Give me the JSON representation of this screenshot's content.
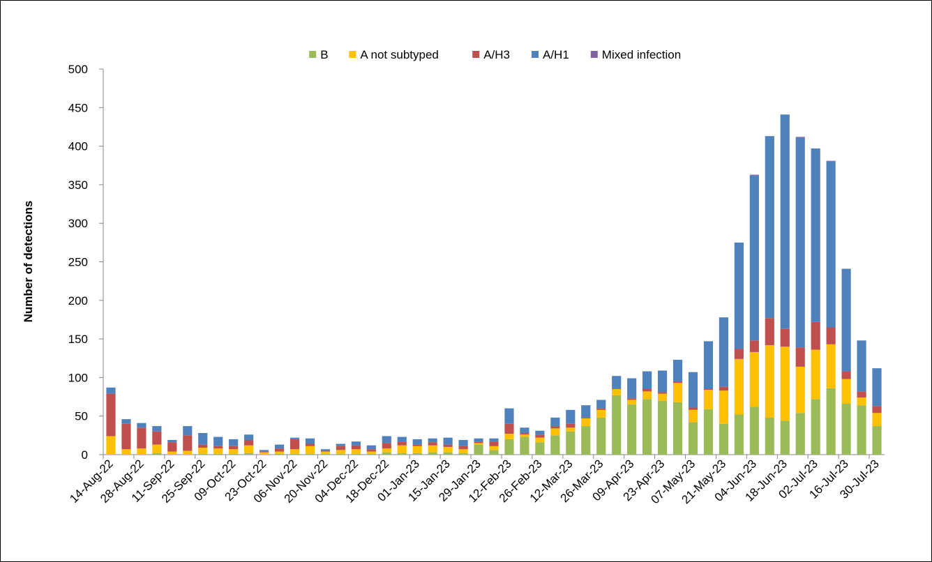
{
  "chart_data": {
    "type": "stacked_bar",
    "y_label": "Number of detections",
    "categories": [
      "14-Aug-22",
      null,
      "28-Aug-22",
      null,
      "11-Sep-22",
      null,
      "25-Sep-22",
      null,
      "09-Oct-22",
      null,
      "23-Oct-22",
      null,
      "06-Nov-22",
      null,
      "20-Nov-22",
      null,
      "04-Dec-22",
      null,
      "18-Dec-22",
      null,
      "01-Jan-23",
      null,
      "15-Jan-23",
      null,
      "29-Jan-23",
      null,
      "12-Feb-23",
      null,
      "26-Feb-23",
      null,
      "12-Mar-23",
      null,
      "26-Mar-23",
      null,
      "09-Apr-23",
      null,
      "23-Apr-23",
      null,
      "07-May-23",
      null,
      "21-May-23",
      null,
      "04-Jun-23",
      null,
      "18-Jun-23",
      null,
      "02-Jul-23",
      null,
      "16-Jul-23",
      null,
      "30-Jul-23"
    ],
    "series": [
      {
        "name": "B",
        "color": "#9bbb59",
        "values": [
          0,
          0,
          0,
          2,
          0,
          0,
          1,
          1,
          1,
          2,
          0,
          1,
          1,
          1,
          1,
          1,
          1,
          1,
          3,
          2,
          2,
          3,
          3,
          2,
          13,
          6,
          20,
          23,
          16,
          25,
          30,
          37,
          48,
          77,
          65,
          72,
          70,
          68,
          42,
          59,
          40,
          52,
          62,
          48,
          44,
          54,
          72,
          86,
          66,
          64,
          37
        ]
      },
      {
        "name": "A not subtyped",
        "color": "#ffc000",
        "values": [
          24,
          7,
          8,
          11,
          4,
          5,
          8,
          7,
          6,
          10,
          3,
          3,
          6,
          10,
          3,
          5,
          6,
          3,
          5,
          10,
          9,
          9,
          7,
          5,
          2,
          5,
          7,
          3,
          6,
          9,
          5,
          10,
          10,
          8,
          6,
          10,
          9,
          25,
          16,
          25,
          43,
          72,
          71,
          94,
          96,
          60,
          64,
          57,
          32,
          10,
          17
        ]
      },
      {
        "name": "A/H3",
        "color": "#c0504d",
        "values": [
          55,
          33,
          27,
          17,
          12,
          20,
          4,
          3,
          4,
          7,
          1,
          4,
          13,
          3,
          1,
          5,
          5,
          3,
          7,
          5,
          2,
          4,
          3,
          4,
          2,
          6,
          13,
          2,
          4,
          3,
          5,
          1,
          2,
          1,
          2,
          3,
          2,
          2,
          3,
          1,
          5,
          13,
          15,
          35,
          23,
          25,
          36,
          22,
          10,
          8,
          9
        ]
      },
      {
        "name": "A/H1",
        "color": "#4f81bd",
        "values": [
          8,
          6,
          6,
          7,
          3,
          12,
          15,
          12,
          9,
          7,
          2,
          5,
          2,
          7,
          2,
          3,
          5,
          5,
          9,
          6,
          7,
          5,
          9,
          8,
          4,
          4,
          20,
          7,
          5,
          11,
          18,
          16,
          11,
          16,
          26,
          23,
          28,
          28,
          46,
          62,
          90,
          138,
          214,
          236,
          278,
          272,
          225,
          215,
          133,
          66,
          49
        ]
      },
      {
        "name": "Mixed infection",
        "color": "#8064a2",
        "values": [
          0,
          0,
          0,
          0,
          0,
          0,
          0,
          0,
          0,
          0,
          0,
          0,
          0,
          0,
          0,
          0,
          0,
          0,
          0,
          0,
          0,
          0,
          0,
          0,
          0,
          0,
          0,
          0,
          0,
          0,
          0,
          0,
          0,
          0,
          0,
          0,
          0,
          0,
          0,
          0,
          0,
          0,
          1,
          0,
          0,
          1,
          0,
          1,
          0,
          0,
          0
        ]
      }
    ],
    "ylim": [
      0,
      500
    ],
    "yticks": [
      0,
      50,
      100,
      150,
      200,
      250,
      300,
      350,
      400,
      450,
      500
    ],
    "legend": "top"
  }
}
